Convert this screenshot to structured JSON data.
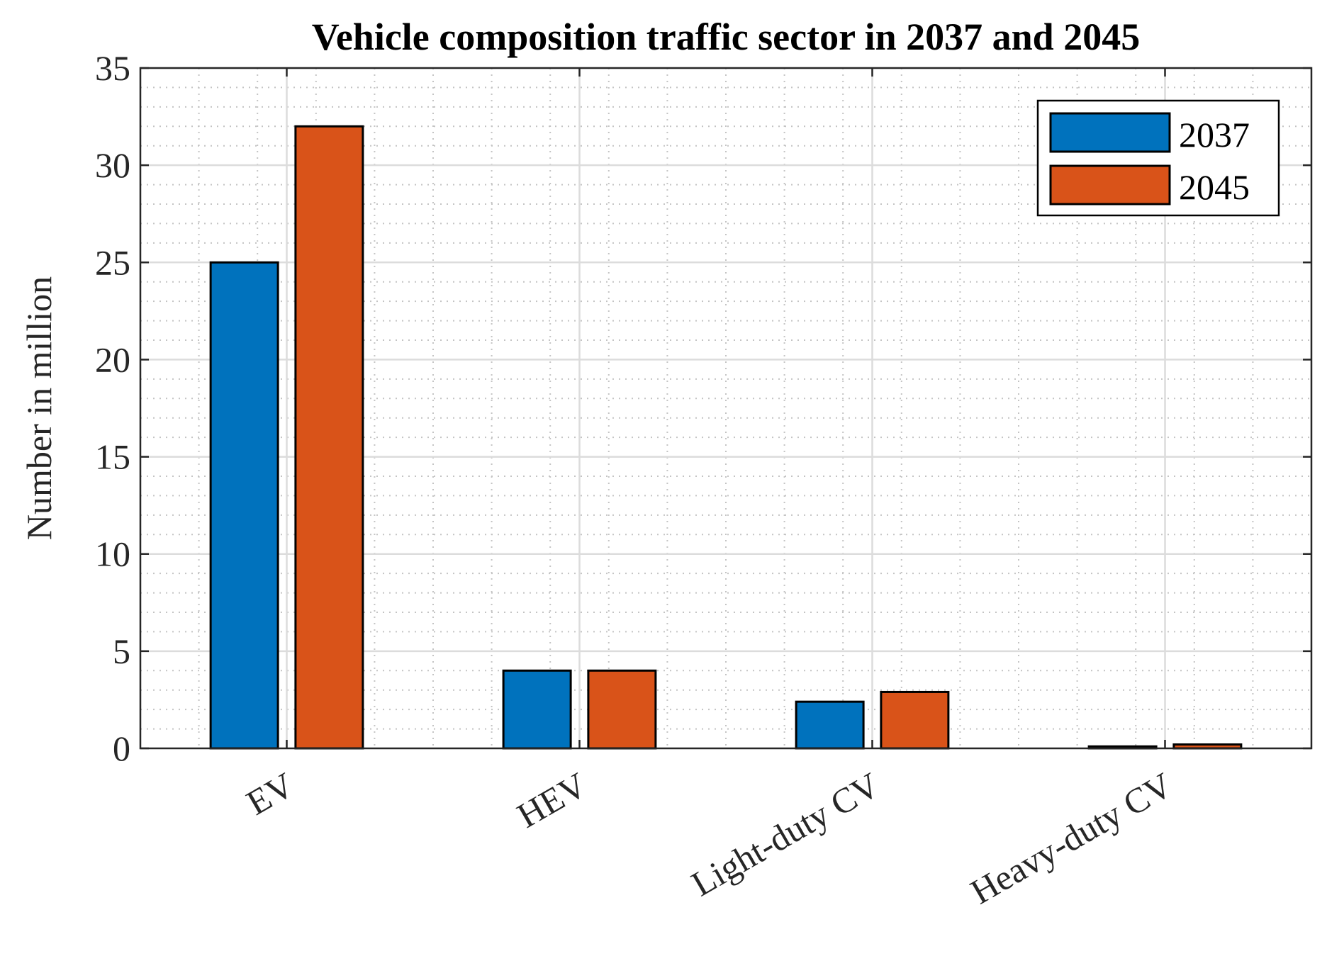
{
  "chart_data": {
    "type": "bar",
    "title": "Vehicle composition traffic sector in 2037 and 2045",
    "xlabel": "",
    "ylabel": "Number in million",
    "ylim": [
      0,
      35
    ],
    "yticks": [
      0,
      5,
      10,
      15,
      20,
      25,
      30,
      35
    ],
    "grid": true,
    "minor_grid": true,
    "legend_position": "top-right",
    "categories": [
      "EV",
      "HEV",
      "Light-duty CV",
      "Heavy-duty CV"
    ],
    "series": [
      {
        "name": "2037",
        "color": "#0072BD",
        "values": [
          25,
          4,
          2.4,
          0.1
        ]
      },
      {
        "name": "2045",
        "color": "#D95319",
        "values": [
          32,
          4,
          2.9,
          0.2
        ]
      }
    ]
  }
}
